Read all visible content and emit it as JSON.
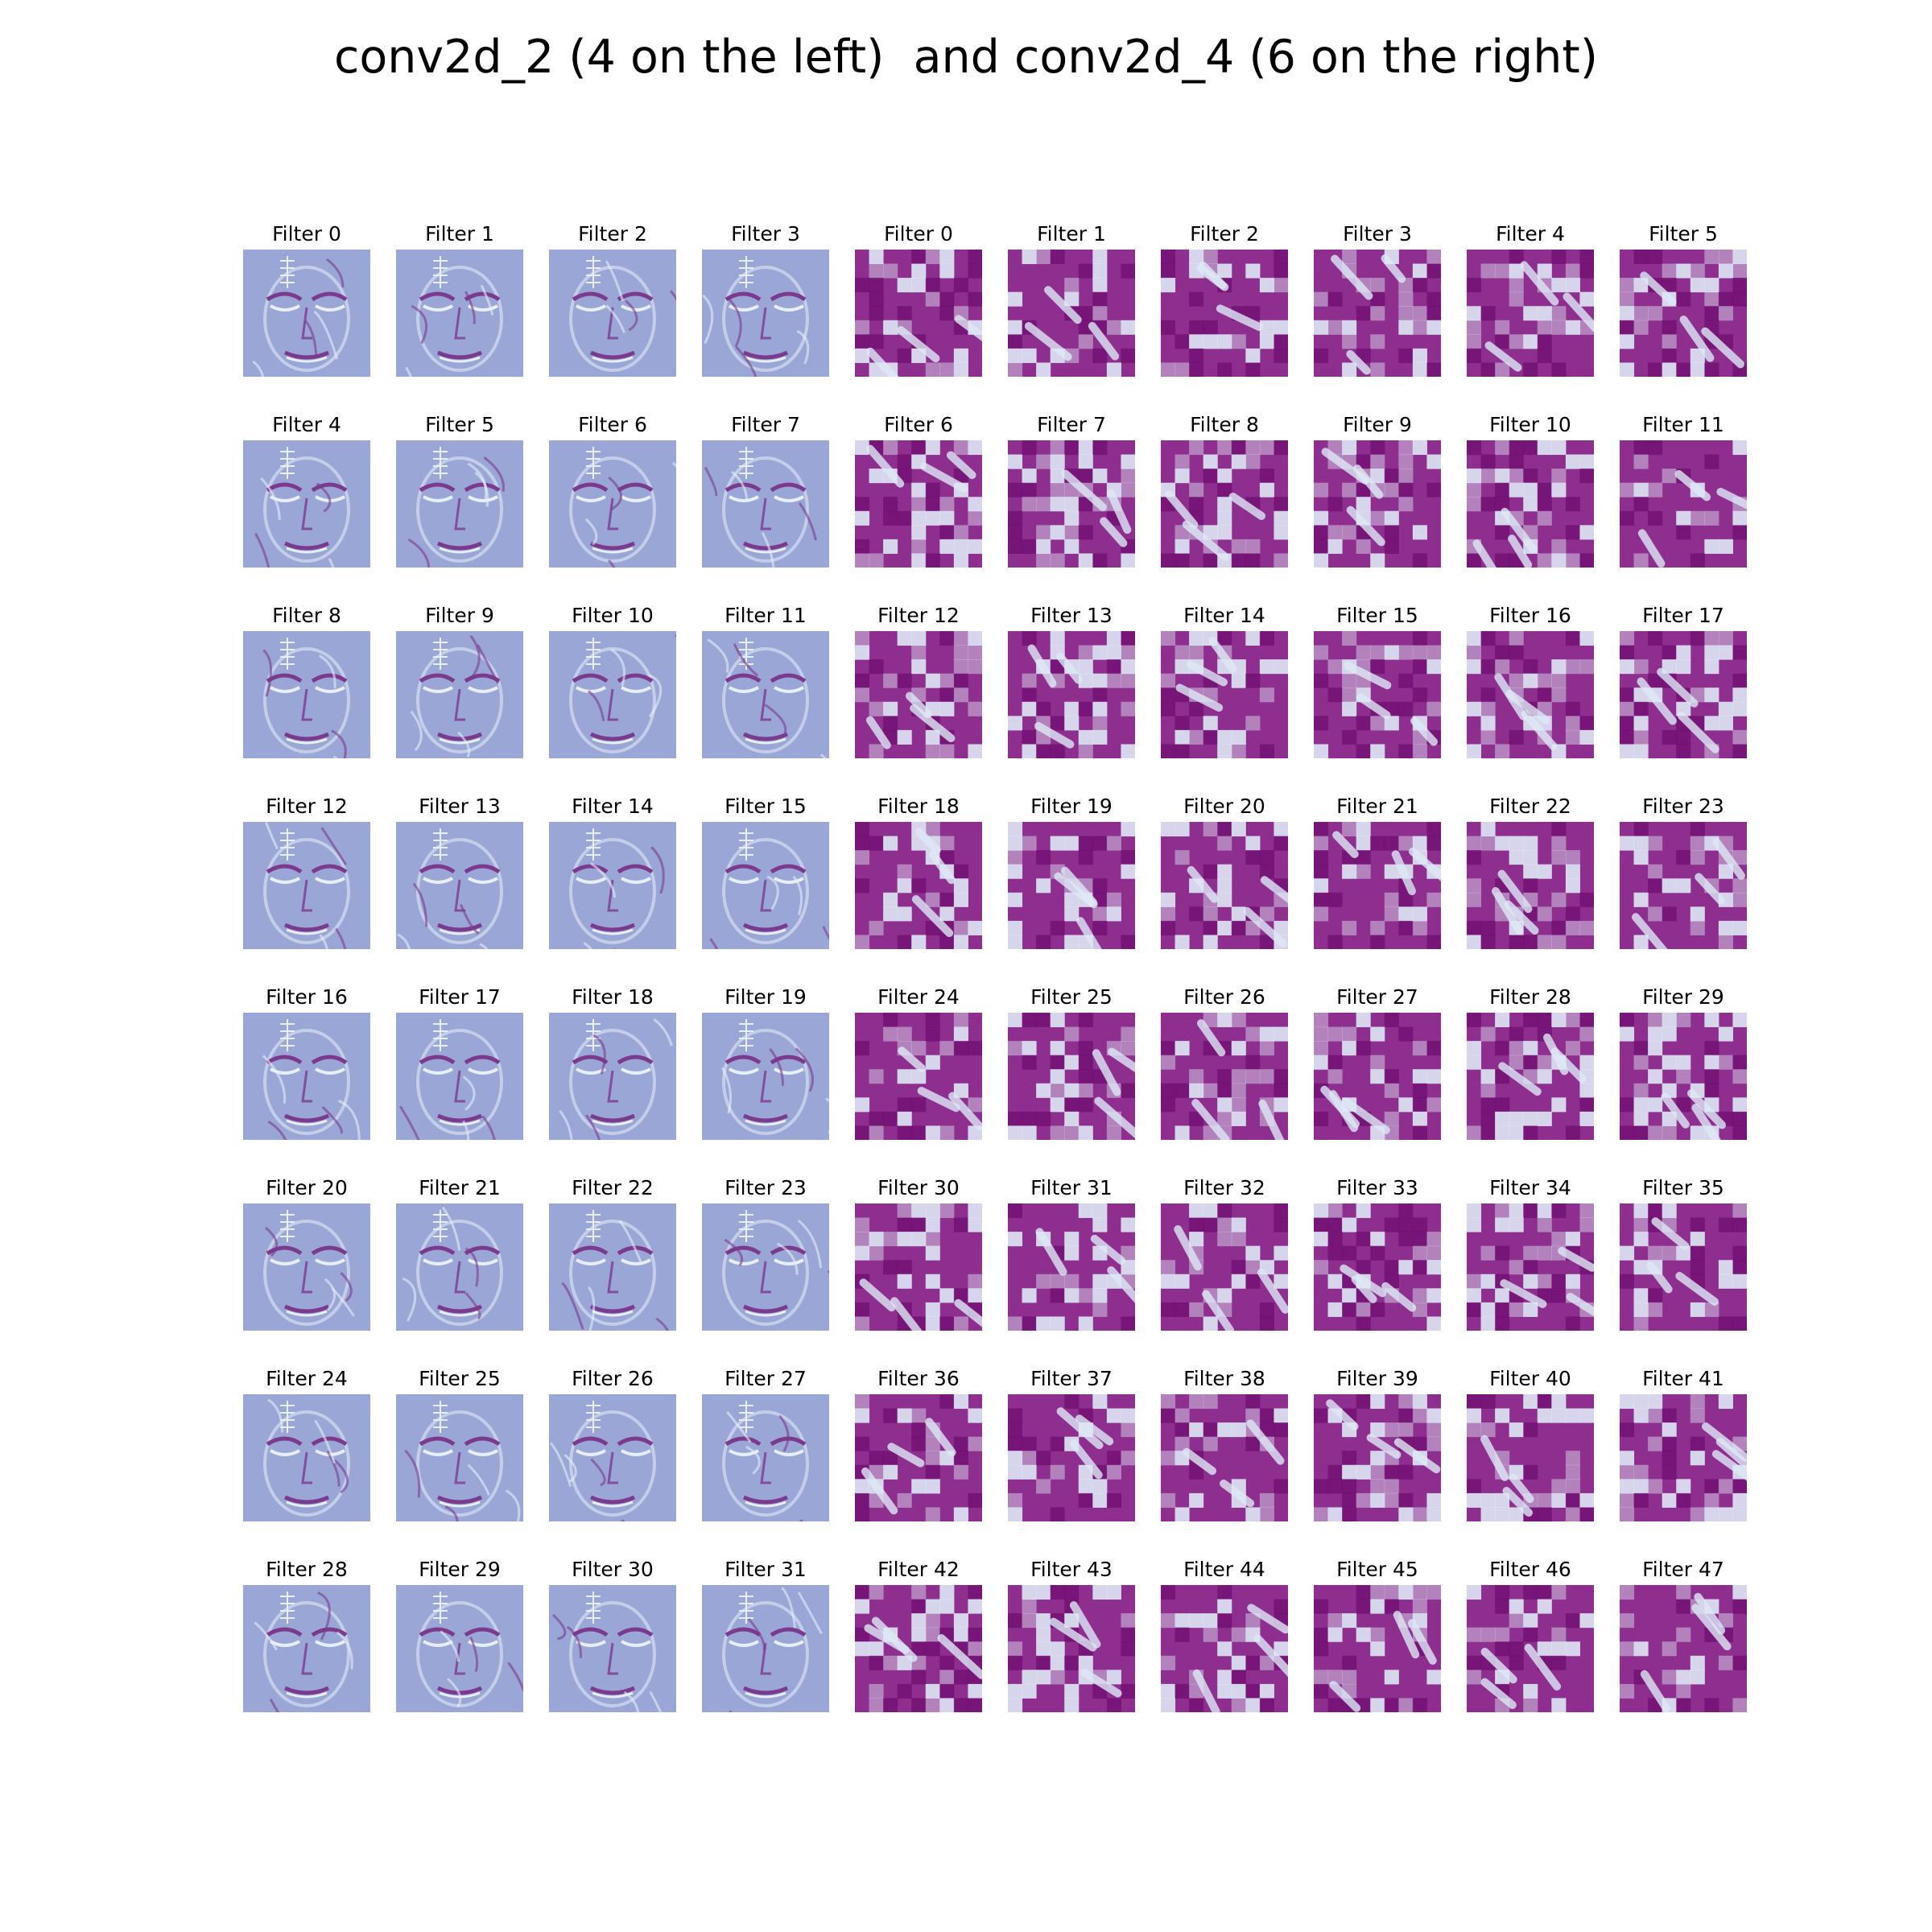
{
  "title": "conv2d_2 (4 on the left)  and conv2d_4 (6 on the right)",
  "colors": {
    "background": "#ffffff",
    "left_base": "#9aa6d6",
    "left_light": "#e7eefa",
    "left_dark": "#7b3a8e",
    "right_base": "#8e2f8f",
    "right_light": "#dfe8f6",
    "right_dark": "#6d0a6e"
  },
  "panels": {
    "left": {
      "label_prefix": "Filter",
      "filters": [
        0,
        1,
        2,
        3,
        4,
        5,
        6,
        7,
        8,
        9,
        10,
        11,
        12,
        13,
        14,
        15,
        16,
        17,
        18,
        19,
        20,
        21,
        22,
        23,
        24,
        25,
        26,
        27,
        28,
        29,
        30,
        31
      ]
    },
    "right": {
      "label_prefix": "Filter",
      "filters": [
        0,
        1,
        2,
        3,
        4,
        5,
        6,
        7,
        8,
        9,
        10,
        11,
        12,
        13,
        14,
        15,
        16,
        17,
        18,
        19,
        20,
        21,
        22,
        23,
        24,
        25,
        26,
        27,
        28,
        29,
        30,
        31,
        32,
        33,
        34,
        35,
        36,
        37,
        38,
        39,
        40,
        41,
        42,
        43,
        44,
        45,
        46,
        47
      ]
    }
  },
  "icons": {
    "feature_map": "feature-map-image"
  }
}
